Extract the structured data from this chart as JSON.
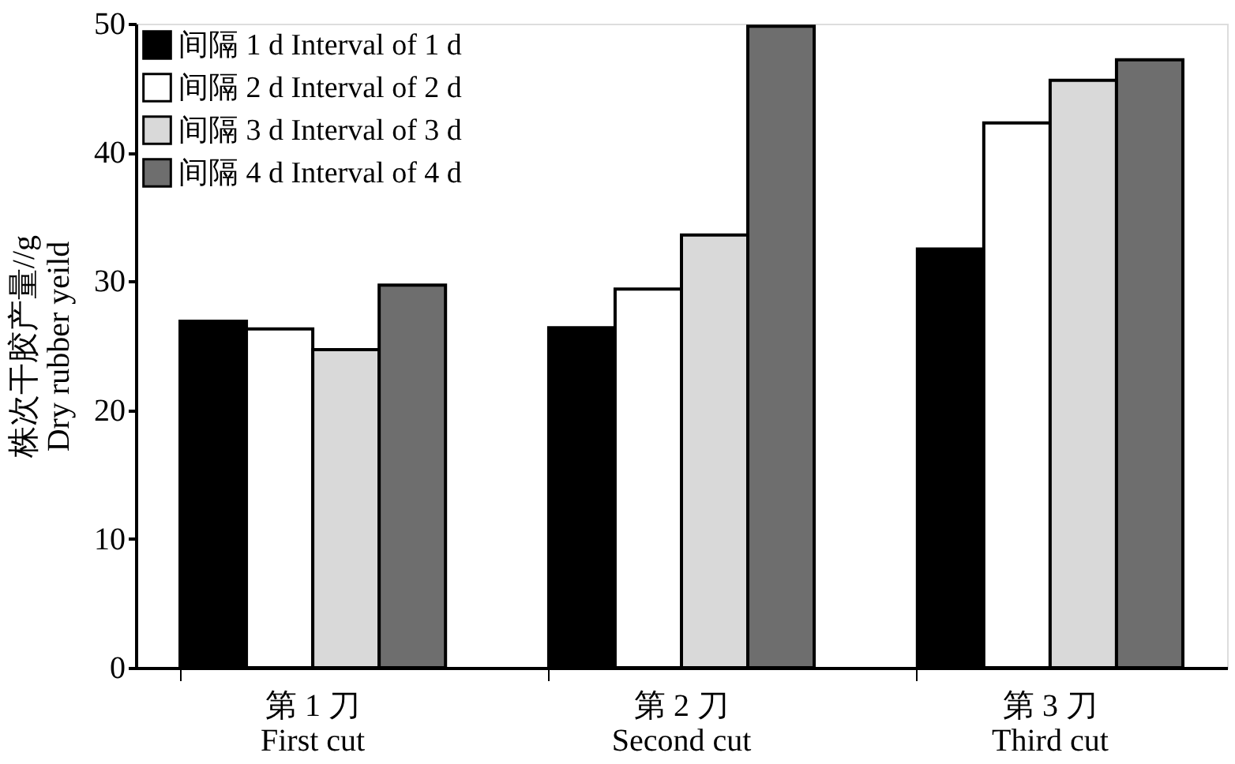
{
  "chart_data": {
    "type": "bar",
    "ylabel": "株次干胶产量//g\nDry rubber yeild",
    "categories": [
      "第 1 刀\nFirst cut",
      "第 2 刀\nSecond cut",
      "第 3 刀\nThird cut"
    ],
    "series": [
      {
        "name": "间隔 1 d  Interval of 1 d",
        "color": "#000000",
        "values": [
          26.9,
          26.4,
          32.5
        ]
      },
      {
        "name": "间隔 2 d  Interval of 2 d",
        "color": "#ffffff",
        "values": [
          26.3,
          29.4,
          42.3
        ]
      },
      {
        "name": "间隔 3 d  Interval of 3 d",
        "color": "#d9d9d9",
        "values": [
          24.7,
          33.6,
          45.6
        ]
      },
      {
        "name": "间隔 4 d  Interval of 4 d",
        "color": "#6e6e6e",
        "values": [
          29.7,
          49.8,
          47.2
        ]
      }
    ],
    "ylim": [
      0,
      50
    ],
    "yticks": [
      0,
      10,
      20,
      30,
      40,
      50
    ],
    "grid": false,
    "legend": "top left"
  }
}
